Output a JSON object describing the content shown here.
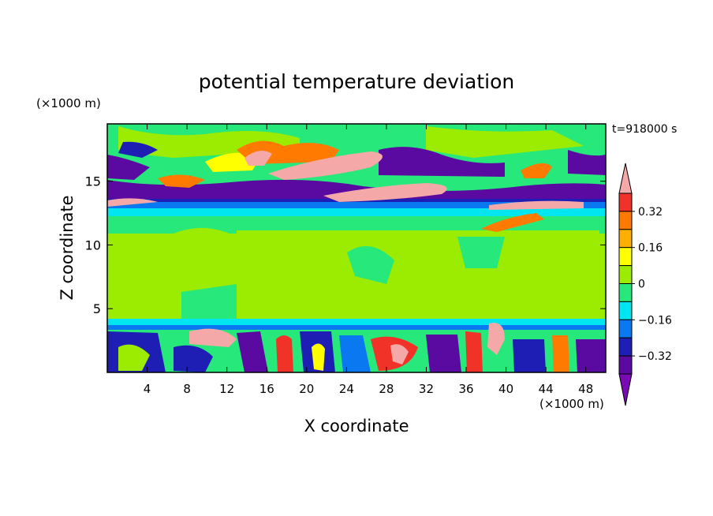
{
  "chart_data": {
    "type": "heatmap",
    "title": "potential temperature deviation",
    "xlabel": "X coordinate",
    "ylabel": "Z coordinate",
    "x_unit_label": "(×1000 m)",
    "y_unit_label": "(×1000 m)",
    "time_label": "t=918000 s",
    "xlim": [
      0,
      50
    ],
    "ylim": [
      0,
      19.5
    ],
    "x_ticks": [
      4,
      8,
      12,
      16,
      20,
      24,
      28,
      32,
      36,
      40,
      44,
      48
    ],
    "y_ticks": [
      5,
      10,
      15
    ],
    "grid": false,
    "colorbar": {
      "placement": "right",
      "levels": [
        {
          "value": 0.4,
          "color": "#f4a8a8"
        },
        {
          "value": 0.32,
          "color": "#f03228"
        },
        {
          "value": 0.24,
          "color": "#ff7a00"
        },
        {
          "value": 0.16,
          "color": "#ffaf00"
        },
        {
          "value": 0.08,
          "color": "#ffff00"
        },
        {
          "value": 0.0,
          "color": "#9bec00"
        },
        {
          "value": -0.08,
          "color": "#27e87a"
        },
        {
          "value": -0.16,
          "color": "#00e6f0"
        },
        {
          "value": -0.24,
          "color": "#0a78f0"
        },
        {
          "value": -0.32,
          "color": "#1e1eb4"
        },
        {
          "value": -0.4,
          "color": "#5a0aa0"
        },
        {
          "value": -0.48,
          "color": "#7a0ab4"
        }
      ],
      "tick_labels": [
        "0.32",
        "0.16",
        "0",
        "-0.16",
        "-0.32"
      ]
    }
  }
}
